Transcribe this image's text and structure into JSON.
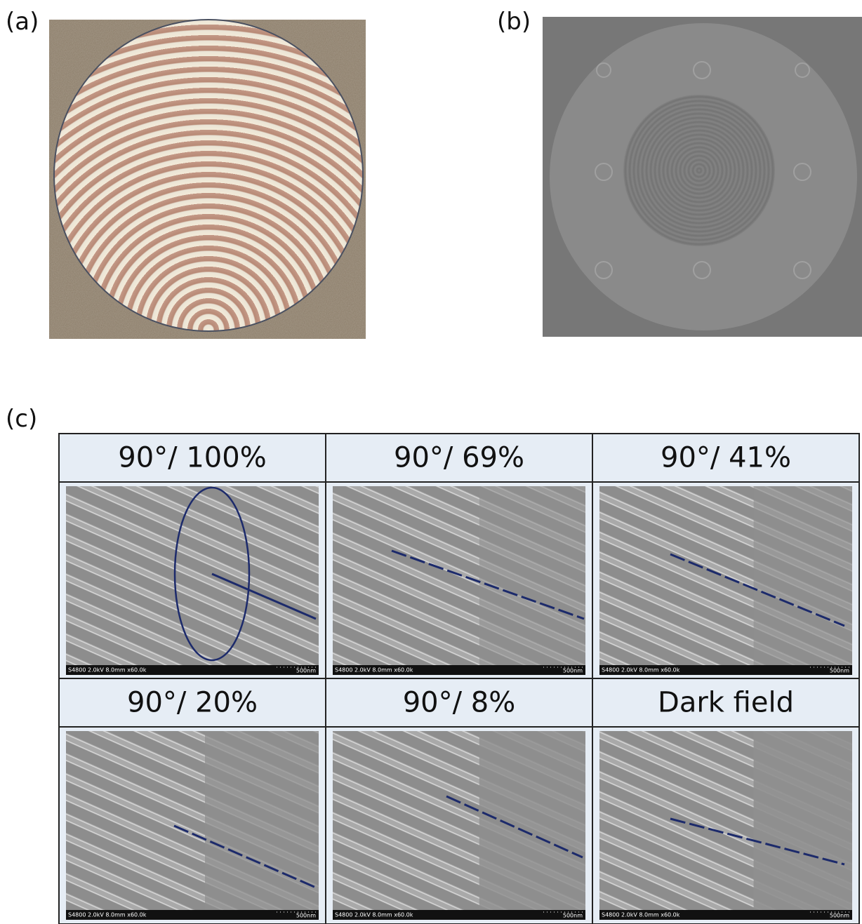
{
  "panels": [
    {
      "label": "(a)"
    },
    {
      "label": "(b)"
    },
    {
      "label": "(c)"
    }
  ],
  "table": {
    "cells": [
      {
        "header": "90°/ 100%",
        "info": "S4800 2.0kV 8.0mm x60.0k",
        "scale": "500nm"
      },
      {
        "header": "90°/ 69%",
        "info": "S4800 2.0kV 8.0mm x60.0k",
        "scale": "500nm"
      },
      {
        "header": "90°/ 41%",
        "info": "S4800 2.0kV 8.0mm x60.0k",
        "scale": "500nm"
      },
      {
        "header": "90°/ 20%",
        "info": "S4800 2.0kV 8.0mm x60.0k",
        "scale": "500nm"
      },
      {
        "header": "90°/ 8%",
        "info": "S4800 2.0kV 8.0mm x60.0k",
        "scale": "500nm"
      },
      {
        "header": "Dark field",
        "info": "S4800 2.0kV 8.0mm x60.0k",
        "scale": "500nm"
      }
    ]
  }
}
